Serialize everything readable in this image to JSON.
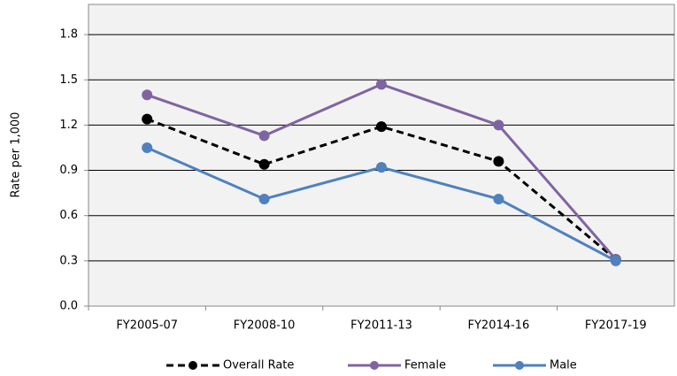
{
  "chart_data": {
    "type": "line",
    "y_label": "Rate per 1,000",
    "categories": [
      "FY2005-07",
      "FY2008-10",
      "FY2011-13",
      "FY2014-16",
      "FY2017-19"
    ],
    "series": [
      {
        "name": "Overall Rate",
        "color": "#000000",
        "dashed": true,
        "values": [
          1.24,
          0.94,
          1.19,
          0.96,
          0.31
        ]
      },
      {
        "name": "Female",
        "color": "#8064a2",
        "dashed": false,
        "values": [
          1.4,
          1.13,
          1.47,
          1.2,
          0.31
        ]
      },
      {
        "name": "Male",
        "color": "#4f81bd",
        "dashed": false,
        "values": [
          1.05,
          0.71,
          0.92,
          0.71,
          0.3
        ]
      }
    ],
    "ylim": [
      0,
      2.0
    ],
    "yticks": [
      {
        "value": 0,
        "label": "0.0"
      },
      0.3,
      0.6,
      0.9,
      1.2,
      1.5,
      1.8
    ],
    "grid": true,
    "legend": "bottom"
  }
}
